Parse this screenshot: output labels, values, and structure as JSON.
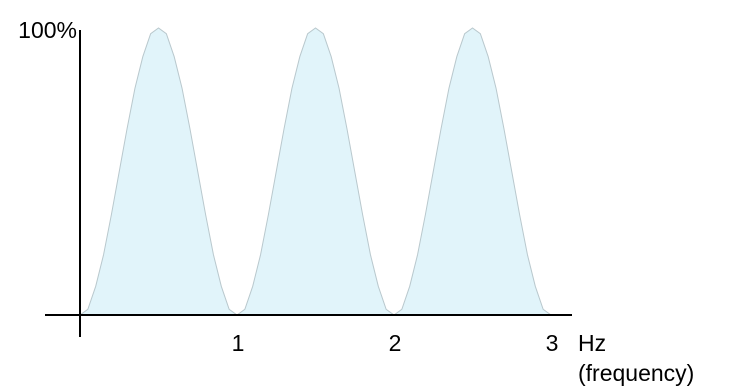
{
  "chart_data": {
    "type": "area",
    "title": "",
    "xlabel": "Hz",
    "xlabel_sub": "(frequency)",
    "ylabel": "",
    "ymax_label": "100%",
    "xlim": [
      0,
      3
    ],
    "ylim": [
      0,
      100
    ],
    "xticks": [
      "1",
      "2",
      "3"
    ],
    "grid": false,
    "colors": {
      "fill": "#e1f4fa",
      "stroke": "#b9c8cd",
      "axis": "#000000"
    },
    "series": [
      {
        "x": [
          0,
          0.05,
          0.1,
          0.15,
          0.2,
          0.25,
          0.3,
          0.35,
          0.4,
          0.45,
          0.5,
          0.55,
          0.6,
          0.65,
          0.7,
          0.75,
          0.8,
          0.85,
          0.9,
          0.95,
          1.0,
          1.05,
          1.1,
          1.15,
          1.2,
          1.25,
          1.3,
          1.35,
          1.4,
          1.45,
          1.5,
          1.55,
          1.6,
          1.65,
          1.7,
          1.75,
          1.8,
          1.85,
          1.9,
          1.95,
          2.0,
          2.05,
          2.1,
          2.15,
          2.2,
          2.25,
          2.3,
          2.35,
          2.4,
          2.45,
          2.5,
          2.55,
          2.6,
          2.65,
          2.7,
          2.75,
          2.8,
          2.85,
          2.9,
          2.95,
          3.0
        ],
        "values": [
          0,
          2,
          10,
          21,
          35,
          50,
          65,
          79,
          90,
          98,
          100,
          98,
          90,
          79,
          65,
          50,
          35,
          21,
          10,
          2,
          0,
          2,
          10,
          21,
          35,
          50,
          65,
          79,
          90,
          98,
          100,
          98,
          90,
          79,
          65,
          50,
          35,
          21,
          10,
          2,
          0,
          2,
          10,
          21,
          35,
          50,
          65,
          79,
          90,
          98,
          100,
          98,
          90,
          79,
          65,
          50,
          35,
          21,
          10,
          2,
          0
        ]
      }
    ]
  }
}
